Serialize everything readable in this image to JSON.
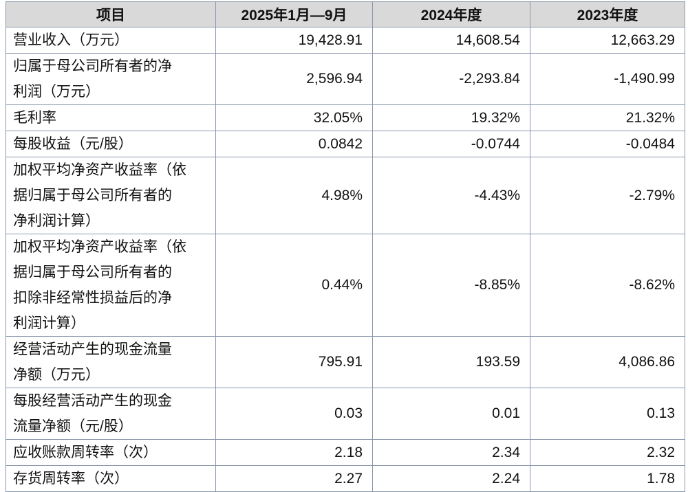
{
  "table": {
    "header": [
      "项目",
      "2025年1月—9月",
      "2024年度",
      "2023年度"
    ],
    "rows": [
      {
        "label_lines": [
          "营业收入（万元）"
        ],
        "values": [
          "19,428.91",
          "14,608.54",
          "12,663.29"
        ]
      },
      {
        "label_lines": [
          "归属于母公司所有者的净",
          "利润（万元）"
        ],
        "values": [
          "2,596.94",
          "-2,293.84",
          "-1,490.99"
        ]
      },
      {
        "label_lines": [
          "毛利率"
        ],
        "values": [
          "32.05%",
          "19.32%",
          "21.32%"
        ]
      },
      {
        "label_lines": [
          "每股收益（元/股）"
        ],
        "values": [
          "0.0842",
          "-0.0744",
          "-0.0484"
        ]
      },
      {
        "label_lines": [
          "加权平均净资产收益率（依",
          "据归属于母公司所有者的",
          "净利润计算）"
        ],
        "values": [
          "4.98%",
          "-4.43%",
          "-2.79%"
        ]
      },
      {
        "label_lines": [
          "加权平均净资产收益率（依",
          "据归属于母公司所有者的",
          "扣除非经常性损益后的净",
          "利润计算）"
        ],
        "values": [
          "0.44%",
          "-8.85%",
          "-8.62%"
        ]
      },
      {
        "label_lines": [
          "经营活动产生的现金流量",
          "净额（万元）"
        ],
        "values": [
          "795.91",
          "193.59",
          "4,086.86"
        ]
      },
      {
        "label_lines": [
          "每股经营活动产生的现金",
          "流量净额（元/股）"
        ],
        "values": [
          "0.03",
          "0.01",
          "0.13"
        ]
      },
      {
        "label_lines": [
          "应收账款周转率（次）"
        ],
        "values": [
          "2.18",
          "2.34",
          "2.32"
        ]
      },
      {
        "label_lines": [
          "存货周转率（次）"
        ],
        "values": [
          "2.27",
          "2.24",
          "1.78"
        ]
      }
    ]
  }
}
